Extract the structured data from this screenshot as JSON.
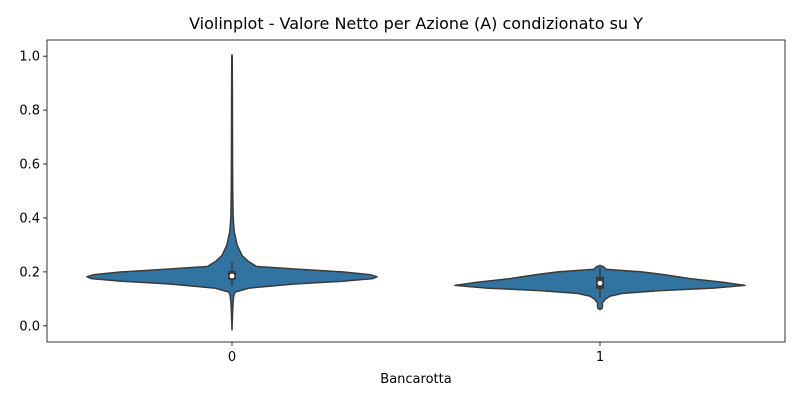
{
  "chart_data": {
    "type": "violin",
    "title": "Violinplot - Valore Netto per Azione (A) condizionato su Y",
    "xlabel": "Bancarotta",
    "ylabel": "",
    "categories": [
      "0",
      "1"
    ],
    "ylim": [
      -0.06,
      1.06
    ],
    "yticks": [
      0.0,
      0.2,
      0.4,
      0.6,
      0.8,
      1.0
    ],
    "ytick_labels": [
      "0.0",
      "0.2",
      "0.4",
      "0.6",
      "0.8",
      "1.0"
    ],
    "grid": false,
    "legend": "none",
    "colors": {
      "fill": "#3274a1",
      "edge": "#3a3a3a",
      "box": "#3a3a3a",
      "median": "#ffffff"
    },
    "violins": [
      {
        "category": "0",
        "density_profile": [
          [
            -0.015,
            0.0
          ],
          [
            0.05,
            0.004
          ],
          [
            0.09,
            0.008
          ],
          [
            0.11,
            0.012
          ],
          [
            0.125,
            0.02
          ],
          [
            0.14,
            0.12
          ],
          [
            0.155,
            0.43
          ],
          [
            0.165,
            0.75
          ],
          [
            0.175,
            0.97
          ],
          [
            0.182,
            1.0
          ],
          [
            0.19,
            0.95
          ],
          [
            0.2,
            0.76
          ],
          [
            0.21,
            0.46
          ],
          [
            0.22,
            0.17
          ],
          [
            0.24,
            0.11
          ],
          [
            0.26,
            0.07
          ],
          [
            0.3,
            0.035
          ],
          [
            0.35,
            0.015
          ],
          [
            0.4,
            0.008
          ],
          [
            0.5,
            0.005
          ],
          [
            0.6,
            0.004
          ],
          [
            0.8,
            0.003
          ],
          [
            1.0,
            0.002
          ],
          [
            1.005,
            0.0
          ]
        ],
        "box": {
          "q1": 0.171,
          "median": 0.185,
          "q3": 0.203,
          "whisker_low": 0.148,
          "whisker_high": 0.236
        }
      },
      {
        "category": "1",
        "density_profile": [
          [
            0.06,
            0.0
          ],
          [
            0.065,
            0.014
          ],
          [
            0.075,
            0.018
          ],
          [
            0.085,
            0.016
          ],
          [
            0.1,
            0.04
          ],
          [
            0.11,
            0.07
          ],
          [
            0.12,
            0.15
          ],
          [
            0.13,
            0.4
          ],
          [
            0.14,
            0.78
          ],
          [
            0.15,
            1.0
          ],
          [
            0.16,
            0.87
          ],
          [
            0.175,
            0.62
          ],
          [
            0.19,
            0.44
          ],
          [
            0.2,
            0.29
          ],
          [
            0.21,
            0.04
          ],
          [
            0.218,
            0.028
          ],
          [
            0.224,
            0.0
          ]
        ],
        "box": {
          "q1": 0.137,
          "median": 0.158,
          "q3": 0.182,
          "whisker_low": 0.104,
          "whisker_high": 0.215
        }
      }
    ]
  }
}
